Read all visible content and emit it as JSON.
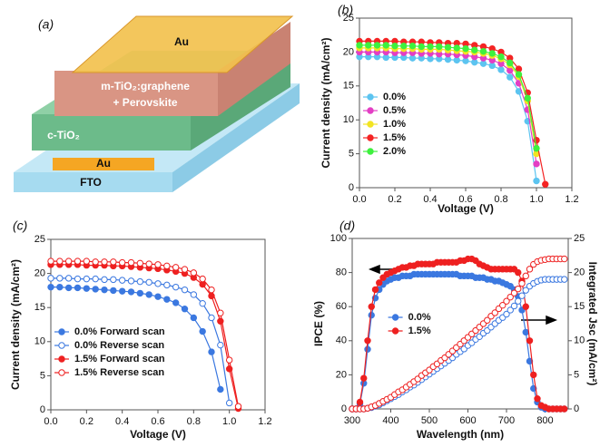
{
  "diagram": {
    "label": "(a)",
    "top_electrode": "Au",
    "active_layer": [
      "m-TiO₂:graphene",
      "+ Perovskite"
    ],
    "blocking_layer": "c-TiO₂",
    "side_electrode": "Au",
    "substrate": "FTO"
  },
  "chart_data": [
    {
      "type": "line",
      "label": "(b)",
      "xlabel": "Voltage (V)",
      "ylabel": "Current density (mA/cm²)",
      "xlim": [
        0,
        1.2
      ],
      "xticks": [
        {
          "value": 0,
          "label": "0.0"
        },
        0.2,
        0.4,
        0.6,
        0.8,
        {
          "value": 1,
          "label": "1.0"
        },
        1.2
      ],
      "ylim": [
        0,
        25
      ],
      "yticks": [
        0,
        5,
        10,
        15,
        20,
        25
      ],
      "legend": "lower left",
      "x": [
        0,
        0.05,
        0.1,
        0.15,
        0.2,
        0.25,
        0.3,
        0.35,
        0.4,
        0.45,
        0.5,
        0.55,
        0.6,
        0.65,
        0.7,
        0.75,
        0.8,
        0.85,
        0.9,
        0.95,
        1,
        1.05
      ],
      "series": [
        {
          "name": "0.0%",
          "color": "#5cc4f0",
          "marker": "filled",
          "values": [
            19.3,
            19.3,
            19.3,
            19.2,
            19.2,
            19.2,
            19.1,
            19.1,
            19.0,
            19.0,
            18.9,
            18.8,
            18.7,
            18.5,
            18.3,
            18.0,
            17.4,
            16.3,
            14.2,
            9.8,
            1.0,
            null
          ]
        },
        {
          "name": "0.5%",
          "color": "#e33fc4",
          "marker": "filled",
          "values": [
            20.0,
            20.0,
            20.0,
            20.0,
            19.9,
            19.9,
            19.9,
            19.8,
            19.8,
            19.7,
            19.7,
            19.6,
            19.5,
            19.3,
            19.1,
            18.8,
            18.3,
            17.3,
            15.4,
            11.5,
            3.5,
            null
          ]
        },
        {
          "name": "1.0%",
          "color": "#f2e422",
          "marker": "filled",
          "values": [
            20.6,
            20.6,
            20.6,
            20.6,
            20.5,
            20.5,
            20.5,
            20.4,
            20.4,
            20.4,
            20.3,
            20.2,
            20.1,
            20.0,
            19.8,
            19.5,
            19.0,
            18.1,
            16.4,
            12.8,
            5.0,
            null
          ]
        },
        {
          "name": "1.5%",
          "color": "#f42424",
          "marker": "filled",
          "values": [
            21.6,
            21.6,
            21.6,
            21.6,
            21.6,
            21.5,
            21.5,
            21.5,
            21.4,
            21.4,
            21.3,
            21.3,
            21.2,
            21.0,
            20.8,
            20.5,
            20.0,
            19.1,
            17.5,
            14.0,
            7.0,
            0.5
          ]
        },
        {
          "name": "2.0%",
          "color": "#3ef03e",
          "marker": "filled",
          "values": [
            21.0,
            21.0,
            21.0,
            21.0,
            20.9,
            20.9,
            20.9,
            20.8,
            20.8,
            20.8,
            20.7,
            20.6,
            20.5,
            20.3,
            20.1,
            19.8,
            19.3,
            18.4,
            16.7,
            13.2,
            5.8,
            null
          ]
        }
      ]
    },
    {
      "type": "line",
      "label": "(c)",
      "xlabel": "Voltage (V)",
      "ylabel": "Current density (mA/cm²)",
      "xlim": [
        0,
        1.2
      ],
      "xticks": [
        {
          "value": 0,
          "label": "0.0"
        },
        0.2,
        0.4,
        0.6,
        0.8,
        {
          "value": 1,
          "label": "1.0"
        },
        1.2
      ],
      "ylim": [
        0,
        25
      ],
      "yticks": [
        0,
        5,
        10,
        15,
        20,
        25
      ],
      "legend": "lower left",
      "x": [
        0,
        0.05,
        0.1,
        0.15,
        0.2,
        0.25,
        0.3,
        0.35,
        0.4,
        0.45,
        0.5,
        0.55,
        0.6,
        0.65,
        0.7,
        0.75,
        0.8,
        0.85,
        0.9,
        0.95,
        1,
        1.05
      ],
      "series": [
        {
          "name": "0.0% Forward scan",
          "color": "#3b78e0",
          "marker": "filled",
          "values": [
            18.0,
            18.0,
            17.9,
            17.9,
            17.8,
            17.7,
            17.6,
            17.5,
            17.4,
            17.3,
            17.1,
            16.9,
            16.6,
            16.2,
            15.7,
            14.8,
            13.5,
            11.5,
            8.5,
            3.0,
            null,
            null
          ]
        },
        {
          "name": "0.0% Reverse scan",
          "color": "#3b78e0",
          "marker": "open",
          "values": [
            19.3,
            19.3,
            19.3,
            19.2,
            19.2,
            19.2,
            19.1,
            19.1,
            19.0,
            18.9,
            18.8,
            18.7,
            18.5,
            18.3,
            18.0,
            17.6,
            16.9,
            15.6,
            13.5,
            9.5,
            1.0,
            null
          ]
        },
        {
          "name": "1.5% Forward scan",
          "color": "#ee2020",
          "marker": "filled",
          "values": [
            21.3,
            21.3,
            21.3,
            21.3,
            21.2,
            21.2,
            21.2,
            21.1,
            21.1,
            21.0,
            20.9,
            20.8,
            20.7,
            20.5,
            20.3,
            20.0,
            19.4,
            18.4,
            16.7,
            13.0,
            6.0,
            0.2
          ]
        },
        {
          "name": "1.5% Reverse scan",
          "color": "#ee2020",
          "marker": "open",
          "values": [
            21.8,
            21.8,
            21.8,
            21.8,
            21.8,
            21.7,
            21.7,
            21.7,
            21.6,
            21.6,
            21.5,
            21.4,
            21.3,
            21.1,
            20.9,
            20.6,
            20.1,
            19.2,
            17.6,
            14.2,
            7.3,
            0.5
          ]
        }
      ]
    },
    {
      "type": "line",
      "label": "(d)",
      "xlabel": "Wavelength (nm)",
      "ylabel": "IPCE (%)",
      "y2label": "Integrated Jsc (mA/cm²)",
      "xlim": [
        300,
        860
      ],
      "xticks": [
        300,
        400,
        500,
        600,
        700,
        800
      ],
      "ylim": [
        0,
        100
      ],
      "yticks": [
        0,
        20,
        40,
        60,
        80,
        100
      ],
      "y2lim": [
        0,
        25
      ],
      "y2ticks": [
        0,
        5,
        10,
        15,
        20,
        25
      ],
      "legend": "center",
      "x": [
        300,
        310,
        320,
        330,
        340,
        350,
        360,
        370,
        380,
        390,
        400,
        410,
        420,
        430,
        440,
        450,
        460,
        470,
        480,
        490,
        500,
        510,
        520,
        530,
        540,
        550,
        560,
        570,
        580,
        590,
        600,
        610,
        620,
        630,
        640,
        650,
        660,
        670,
        680,
        690,
        700,
        710,
        720,
        730,
        740,
        750,
        760,
        770,
        780,
        790,
        800,
        810,
        820,
        830,
        840,
        850
      ],
      "series": [
        {
          "name": "0.0%",
          "color": "#3b78e0",
          "marker": "filled",
          "values": [
            0,
            0,
            3,
            15,
            35,
            55,
            65,
            70,
            73,
            75,
            76,
            77,
            77,
            78,
            78,
            78,
            79,
            79,
            79,
            79,
            79,
            79,
            79,
            79,
            79,
            79,
            79,
            79,
            78,
            78,
            78,
            78,
            77,
            77,
            77,
            76,
            76,
            75,
            75,
            74,
            73,
            72,
            70,
            66,
            58,
            45,
            28,
            12,
            4,
            1,
            0,
            0,
            0,
            0,
            0,
            0
          ]
        },
        {
          "name": "1.5%",
          "color": "#ee2020",
          "marker": "filled",
          "values": [
            0,
            0,
            4,
            18,
            40,
            60,
            70,
            74,
            77,
            79,
            80,
            81,
            82,
            83,
            83,
            84,
            84,
            85,
            85,
            85,
            85,
            85,
            86,
            86,
            86,
            86,
            86,
            86,
            87,
            87,
            88,
            88,
            87,
            85,
            84,
            83,
            82,
            82,
            82,
            82,
            82,
            82,
            82,
            80,
            75,
            60,
            40,
            20,
            6,
            2,
            1,
            0,
            0,
            0,
            0,
            0
          ]
        },
        {
          "color": "#3b78e0",
          "marker": "open",
          "axis": "y2",
          "values": [
            0,
            0,
            0,
            0,
            0.1,
            0.2,
            0.4,
            0.6,
            0.9,
            1.2,
            1.5,
            1.8,
            2.1,
            2.5,
            2.8,
            3.2,
            3.5,
            3.9,
            4.3,
            4.7,
            5.1,
            5.5,
            5.9,
            6.3,
            6.7,
            7.1,
            7.5,
            8.0,
            8.4,
            8.8,
            9.3,
            9.7,
            10.2,
            10.6,
            11.1,
            11.5,
            12.0,
            12.5,
            13.0,
            13.4,
            13.9,
            14.5,
            15.1,
            15.8,
            16.6,
            17.4,
            18.0,
            18.4,
            18.7,
            18.9,
            19.0,
            19.0,
            19.0,
            19.0,
            19.0,
            19.0
          ]
        },
        {
          "color": "#ee2020",
          "marker": "open",
          "axis": "y2",
          "values": [
            0,
            0,
            0,
            0,
            0.1,
            0.3,
            0.5,
            0.8,
            1.1,
            1.4,
            1.7,
            2.1,
            2.5,
            2.8,
            3.2,
            3.6,
            4.0,
            4.4,
            4.9,
            5.3,
            5.7,
            6.2,
            6.6,
            7.1,
            7.5,
            8.0,
            8.5,
            9.0,
            9.5,
            10.0,
            10.5,
            11.0,
            11.5,
            12.0,
            12.5,
            13.0,
            13.6,
            14.1,
            14.7,
            15.2,
            15.8,
            16.4,
            17.0,
            17.6,
            18.4,
            19.5,
            20.5,
            21.2,
            21.6,
            21.8,
            21.9,
            22.0,
            22.0,
            22.0,
            22.0,
            22.0
          ]
        }
      ]
    }
  ]
}
